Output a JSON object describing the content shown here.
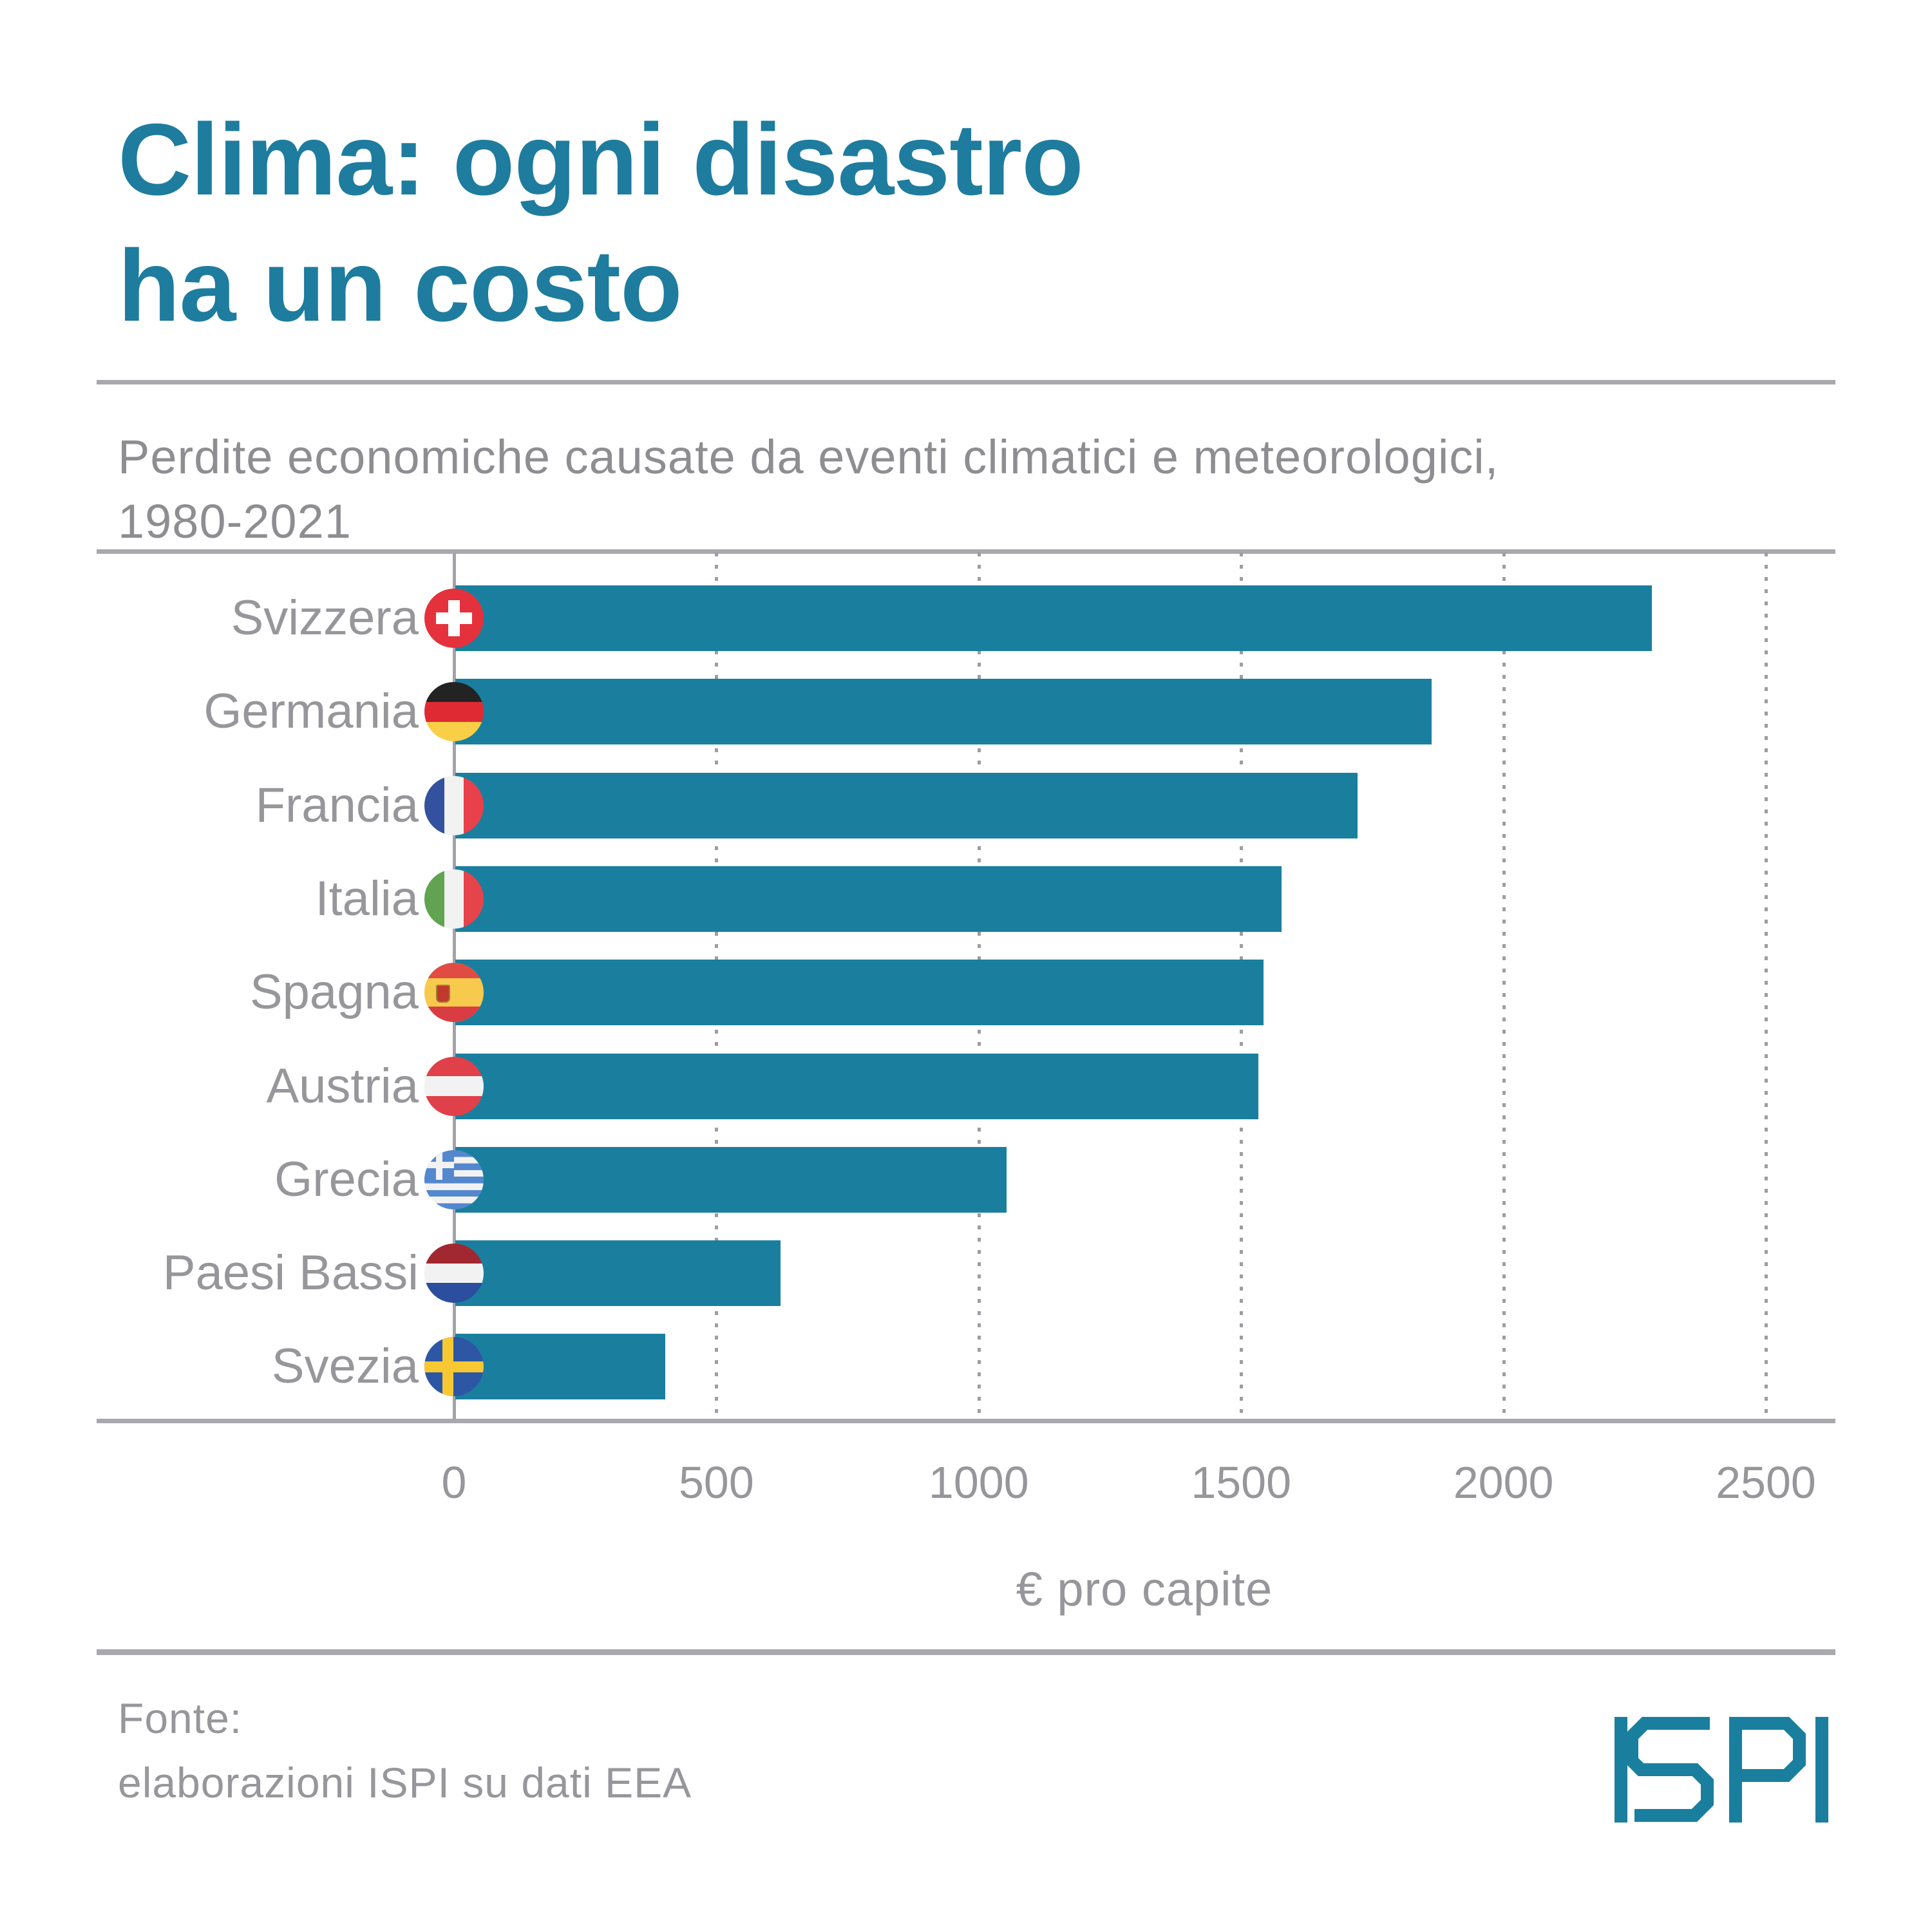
{
  "header": {
    "title_line1": "Clima: ogni disastro",
    "title_line2": "ha un costo",
    "subtitle_line1": "Perdite economiche causate da eventi climatici e meteorologici,",
    "subtitle_line2": "1980-2021"
  },
  "chart_data": {
    "type": "bar",
    "orientation": "horizontal",
    "title": "Clima: ogni disastro ha un costo",
    "subtitle": "Perdite economiche causate da eventi climatici e meteorologici, 1980-2021",
    "categories": [
      "Svizzera",
      "Germania",
      "Francia",
      "Italia",
      "Spagna",
      "Austria",
      "Grecia",
      "Paesi Bassi",
      "Svezia"
    ],
    "values": [
      2280,
      1860,
      1720,
      1575,
      1540,
      1530,
      1050,
      620,
      400
    ],
    "flag_icons": [
      "flag-switzerland-icon",
      "flag-germany-icon",
      "flag-france-icon",
      "flag-italy-icon",
      "flag-spain-icon",
      "flag-austria-icon",
      "flag-greece-icon",
      "flag-netherlands-icon",
      "flag-sweden-icon"
    ],
    "flag_codes": [
      "ch",
      "de",
      "fr",
      "it",
      "es",
      "at",
      "gr",
      "nl",
      "se"
    ],
    "xlabel": "€ pro capite",
    "x_ticks": [
      0,
      500,
      1000,
      1500,
      2000,
      2500
    ],
    "xlim": [
      0,
      2630
    ],
    "grid": "vertical-dotted",
    "legend": "none",
    "bar_color": "#1A7F9E"
  },
  "footer": {
    "source_line1": "Fonte:",
    "source_line2": "elaborazioni ISPI su dati EEA",
    "logo_text": "ISPI"
  },
  "colors": {
    "accent_teal": "#1A7F9E",
    "title_teal": "#1E7C9E",
    "text_gray": "#96969b",
    "subtitle_gray": "#8d8d92",
    "rule_gray": "#a8a8ae"
  }
}
